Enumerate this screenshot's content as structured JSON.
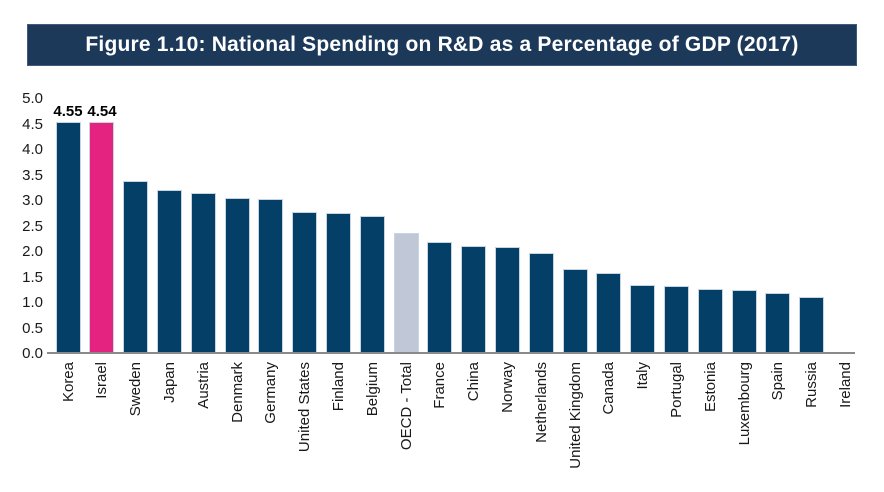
{
  "banner": {
    "text": "Figure 1.10: National Spending on R&D as a Percentage of GDP (2017)"
  },
  "colors": {
    "banner_bg": "#1c395a",
    "banner_text": "#ffffff",
    "bar_default": "#043f68",
    "bar_highlight": "#e3237f",
    "bar_neutral": "#c0c7d6",
    "bar_border": "#c9d4e2",
    "axis_line": "#8a8a8a",
    "label_text": "#1a1a1a",
    "value_label_text": "#000000"
  },
  "chart_data": {
    "type": "bar",
    "title": "Figure 1.10: National Spending on R&D as a Percentage of GDP (2017)",
    "xlabel": "",
    "ylabel": "",
    "ylim": [
      0,
      5
    ],
    "ytick_interval": 0.5,
    "ytick_labels": [
      "5.0",
      "4.5",
      "4.0",
      "3.5",
      "3.0",
      "2.5",
      "2.0",
      "1.5",
      "1.0",
      "0.5",
      "0.0"
    ],
    "grid": false,
    "legend": null,
    "categories": [
      "Korea",
      "Israel",
      "Sweden",
      "Japan",
      "Austria",
      "Denmark",
      "Germany",
      "United States",
      "Finland",
      "Belgium",
      "OECD - Total",
      "France",
      "China",
      "Norway",
      "Netherlands",
      "United Kingdom",
      "Canada",
      "Italy",
      "Portugal",
      "Estonia",
      "Luxembourg",
      "Spain",
      "Russia",
      "Ireland"
    ],
    "values": [
      4.55,
      4.54,
      3.4,
      3.21,
      3.16,
      3.05,
      3.04,
      2.79,
      2.76,
      2.7,
      2.37,
      2.19,
      2.12,
      2.09,
      1.98,
      1.66,
      1.59,
      1.35,
      1.33,
      1.28,
      1.26,
      1.2,
      1.11,
      null
    ],
    "bar_styles": [
      "default",
      "highlight",
      "default",
      "default",
      "default",
      "default",
      "default",
      "default",
      "default",
      "default",
      "neutral",
      "default",
      "default",
      "default",
      "default",
      "default",
      "default",
      "default",
      "default",
      "default",
      "default",
      "default",
      "default",
      "none"
    ],
    "value_labels": {
      "0": "4.55",
      "1": "4.54"
    },
    "highlighted_category": "Israel",
    "neutral_category": "OECD - Total"
  }
}
